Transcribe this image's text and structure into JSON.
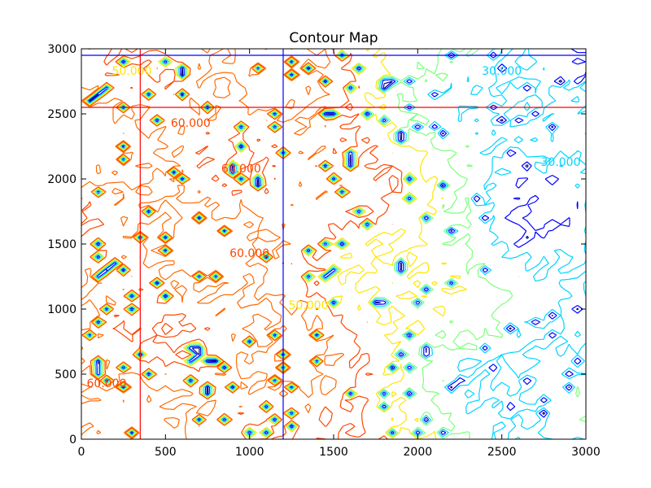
{
  "chart_data": {
    "type": "contour",
    "title": "Contour Map",
    "xlabel": "",
    "ylabel": "",
    "xlim": [
      0,
      3000
    ],
    "ylim": [
      0,
      3000
    ],
    "x_ticks": [
      0,
      500,
      1000,
      1500,
      2000,
      2500,
      3000
    ],
    "y_ticks": [
      0,
      500,
      1000,
      1500,
      2000,
      2500,
      3000
    ],
    "x_tick_labels": [
      "0",
      "500",
      "1000",
      "1500",
      "2000",
      "2500",
      "3000"
    ],
    "y_tick_labels": [
      "0",
      "500",
      "1000",
      "1500",
      "2000",
      "2500",
      "3000"
    ],
    "grid": false,
    "legend": "none",
    "colormap": "jet",
    "contour_levels": [
      {
        "value": 0,
        "color": "#00007f"
      },
      {
        "value": 10000,
        "color": "#0000ff"
      },
      {
        "value": 20000,
        "color": "#00d4ff"
      },
      {
        "value": 30000,
        "color": "#7cff79"
      },
      {
        "value": 40000,
        "color": "#ffe500"
      },
      {
        "value": 50000,
        "color": "#ff4600"
      },
      {
        "value": 60000,
        "color": "#ff6a00"
      }
    ],
    "contour_labels": [
      {
        "text": "30.000",
        "x": 2850,
        "y": 2100,
        "color": "#00d4ff"
      },
      {
        "text": "30.000",
        "x": 2500,
        "y": 2800,
        "color": "#00d4ff"
      },
      {
        "text": "50.000",
        "x": 300,
        "y": 2800,
        "color": "#ffe500"
      },
      {
        "text": "60.000",
        "x": 950,
        "y": 2050,
        "color": "#ff4600"
      },
      {
        "text": "60.000",
        "x": 650,
        "y": 2400,
        "color": "#ff4600"
      },
      {
        "text": "60.000",
        "x": 1000,
        "y": 1400,
        "color": "#ff4600"
      },
      {
        "text": "60.000",
        "x": 150,
        "y": 400,
        "color": "#ff4600"
      },
      {
        "text": "50.000",
        "x": 1350,
        "y": 1000,
        "color": "#ffe500"
      }
    ],
    "reference_lines": [
      {
        "orientation": "vertical",
        "x": 350,
        "color": "#ff0000"
      },
      {
        "orientation": "horizontal",
        "y": 2550,
        "color": "#ff0000"
      },
      {
        "orientation": "vertical",
        "x": 1200,
        "color": "#0000ff"
      },
      {
        "orientation": "horizontal",
        "y": 2950,
        "color": "#0000ff"
      }
    ]
  }
}
